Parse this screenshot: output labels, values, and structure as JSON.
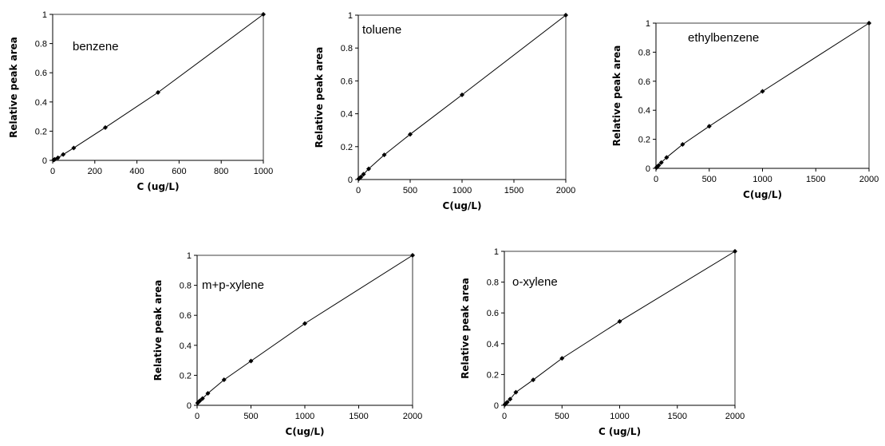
{
  "chart_data": [
    {
      "type": "line",
      "label": "benzene",
      "xlabel": "C (ug/L)",
      "ylabel": "Relative peak area",
      "xlim": [
        0,
        1000
      ],
      "ylim": [
        0,
        1
      ],
      "xticks": [
        0,
        200,
        400,
        600,
        800,
        1000
      ],
      "yticks": [
        0,
        0.2,
        0.4,
        0.6,
        0.8,
        1
      ],
      "ytick_labels": [
        "0",
        "0.2",
        "0.4",
        "0.6",
        "0.8",
        "1"
      ],
      "x": [
        5,
        10,
        25,
        50,
        100,
        250,
        500,
        1000
      ],
      "y": [
        0.003,
        0.007,
        0.018,
        0.04,
        0.085,
        0.225,
        0.465,
        1.0
      ]
    },
    {
      "type": "line",
      "label": "toluene",
      "xlabel": "C(ug/L)",
      "ylabel": "Relative peak area",
      "xlim": [
        0,
        2000
      ],
      "ylim": [
        0,
        1
      ],
      "xticks": [
        0,
        500,
        1000,
        1500,
        2000
      ],
      "yticks": [
        0,
        0.2,
        0.4,
        0.6,
        0.8,
        1
      ],
      "ytick_labels": [
        "0",
        "0.2",
        "0.4",
        "0.6",
        "0.8",
        "1"
      ],
      "x": [
        5,
        10,
        25,
        50,
        100,
        250,
        500,
        1000,
        2000
      ],
      "y": [
        0.004,
        0.008,
        0.015,
        0.032,
        0.065,
        0.15,
        0.275,
        0.515,
        1.0
      ]
    },
    {
      "type": "line",
      "label": "ethylbenzene",
      "xlabel": "C(ug/L)",
      "ylabel": "Relative peak area",
      "xlim": [
        0,
        2000
      ],
      "ylim": [
        0,
        1
      ],
      "xticks": [
        0,
        500,
        1000,
        1500,
        2000
      ],
      "yticks": [
        0,
        0.2,
        0.4,
        0.6,
        0.8,
        1
      ],
      "ytick_labels": [
        "0",
        "0.2",
        "0.4",
        "0.6",
        "0.8",
        "1"
      ],
      "x": [
        5,
        10,
        25,
        50,
        100,
        250,
        500,
        1000,
        2000
      ],
      "y": [
        0.005,
        0.01,
        0.02,
        0.04,
        0.075,
        0.165,
        0.29,
        0.53,
        1.0
      ]
    },
    {
      "type": "line",
      "label": "m+p-xylene",
      "xlabel": "C(ug/L)",
      "ylabel": "Relative peak area",
      "xlim": [
        0,
        2000
      ],
      "ylim": [
        0,
        1
      ],
      "xticks": [
        0,
        500,
        1000,
        1500,
        2000
      ],
      "yticks": [
        0,
        0.2,
        0.4,
        0.6,
        0.8,
        1
      ],
      "ytick_labels": [
        "0",
        "0.2",
        "0.4",
        "0.6",
        "0.8",
        "1"
      ],
      "x": [
        5,
        10,
        25,
        50,
        100,
        250,
        500,
        1000,
        2000
      ],
      "y": [
        0.015,
        0.02,
        0.03,
        0.045,
        0.08,
        0.17,
        0.295,
        0.545,
        1.0
      ]
    },
    {
      "type": "line",
      "label": "o-xylene",
      "xlabel": "C (ug/L)",
      "ylabel": "Relative peak area",
      "xlim": [
        0,
        2000
      ],
      "ylim": [
        0,
        1
      ],
      "xticks": [
        0,
        500,
        1000,
        1500,
        2000
      ],
      "yticks": [
        0,
        0.2,
        0.4,
        0.6,
        0.8,
        1
      ],
      "ytick_labels": [
        "0",
        "0.2",
        "0.4",
        "0.6",
        "0.8",
        "1"
      ],
      "x": [
        5,
        10,
        25,
        50,
        100,
        250,
        500,
        1000,
        2000
      ],
      "y": [
        0.005,
        0.01,
        0.02,
        0.04,
        0.085,
        0.165,
        0.305,
        0.545,
        1.0
      ]
    }
  ]
}
